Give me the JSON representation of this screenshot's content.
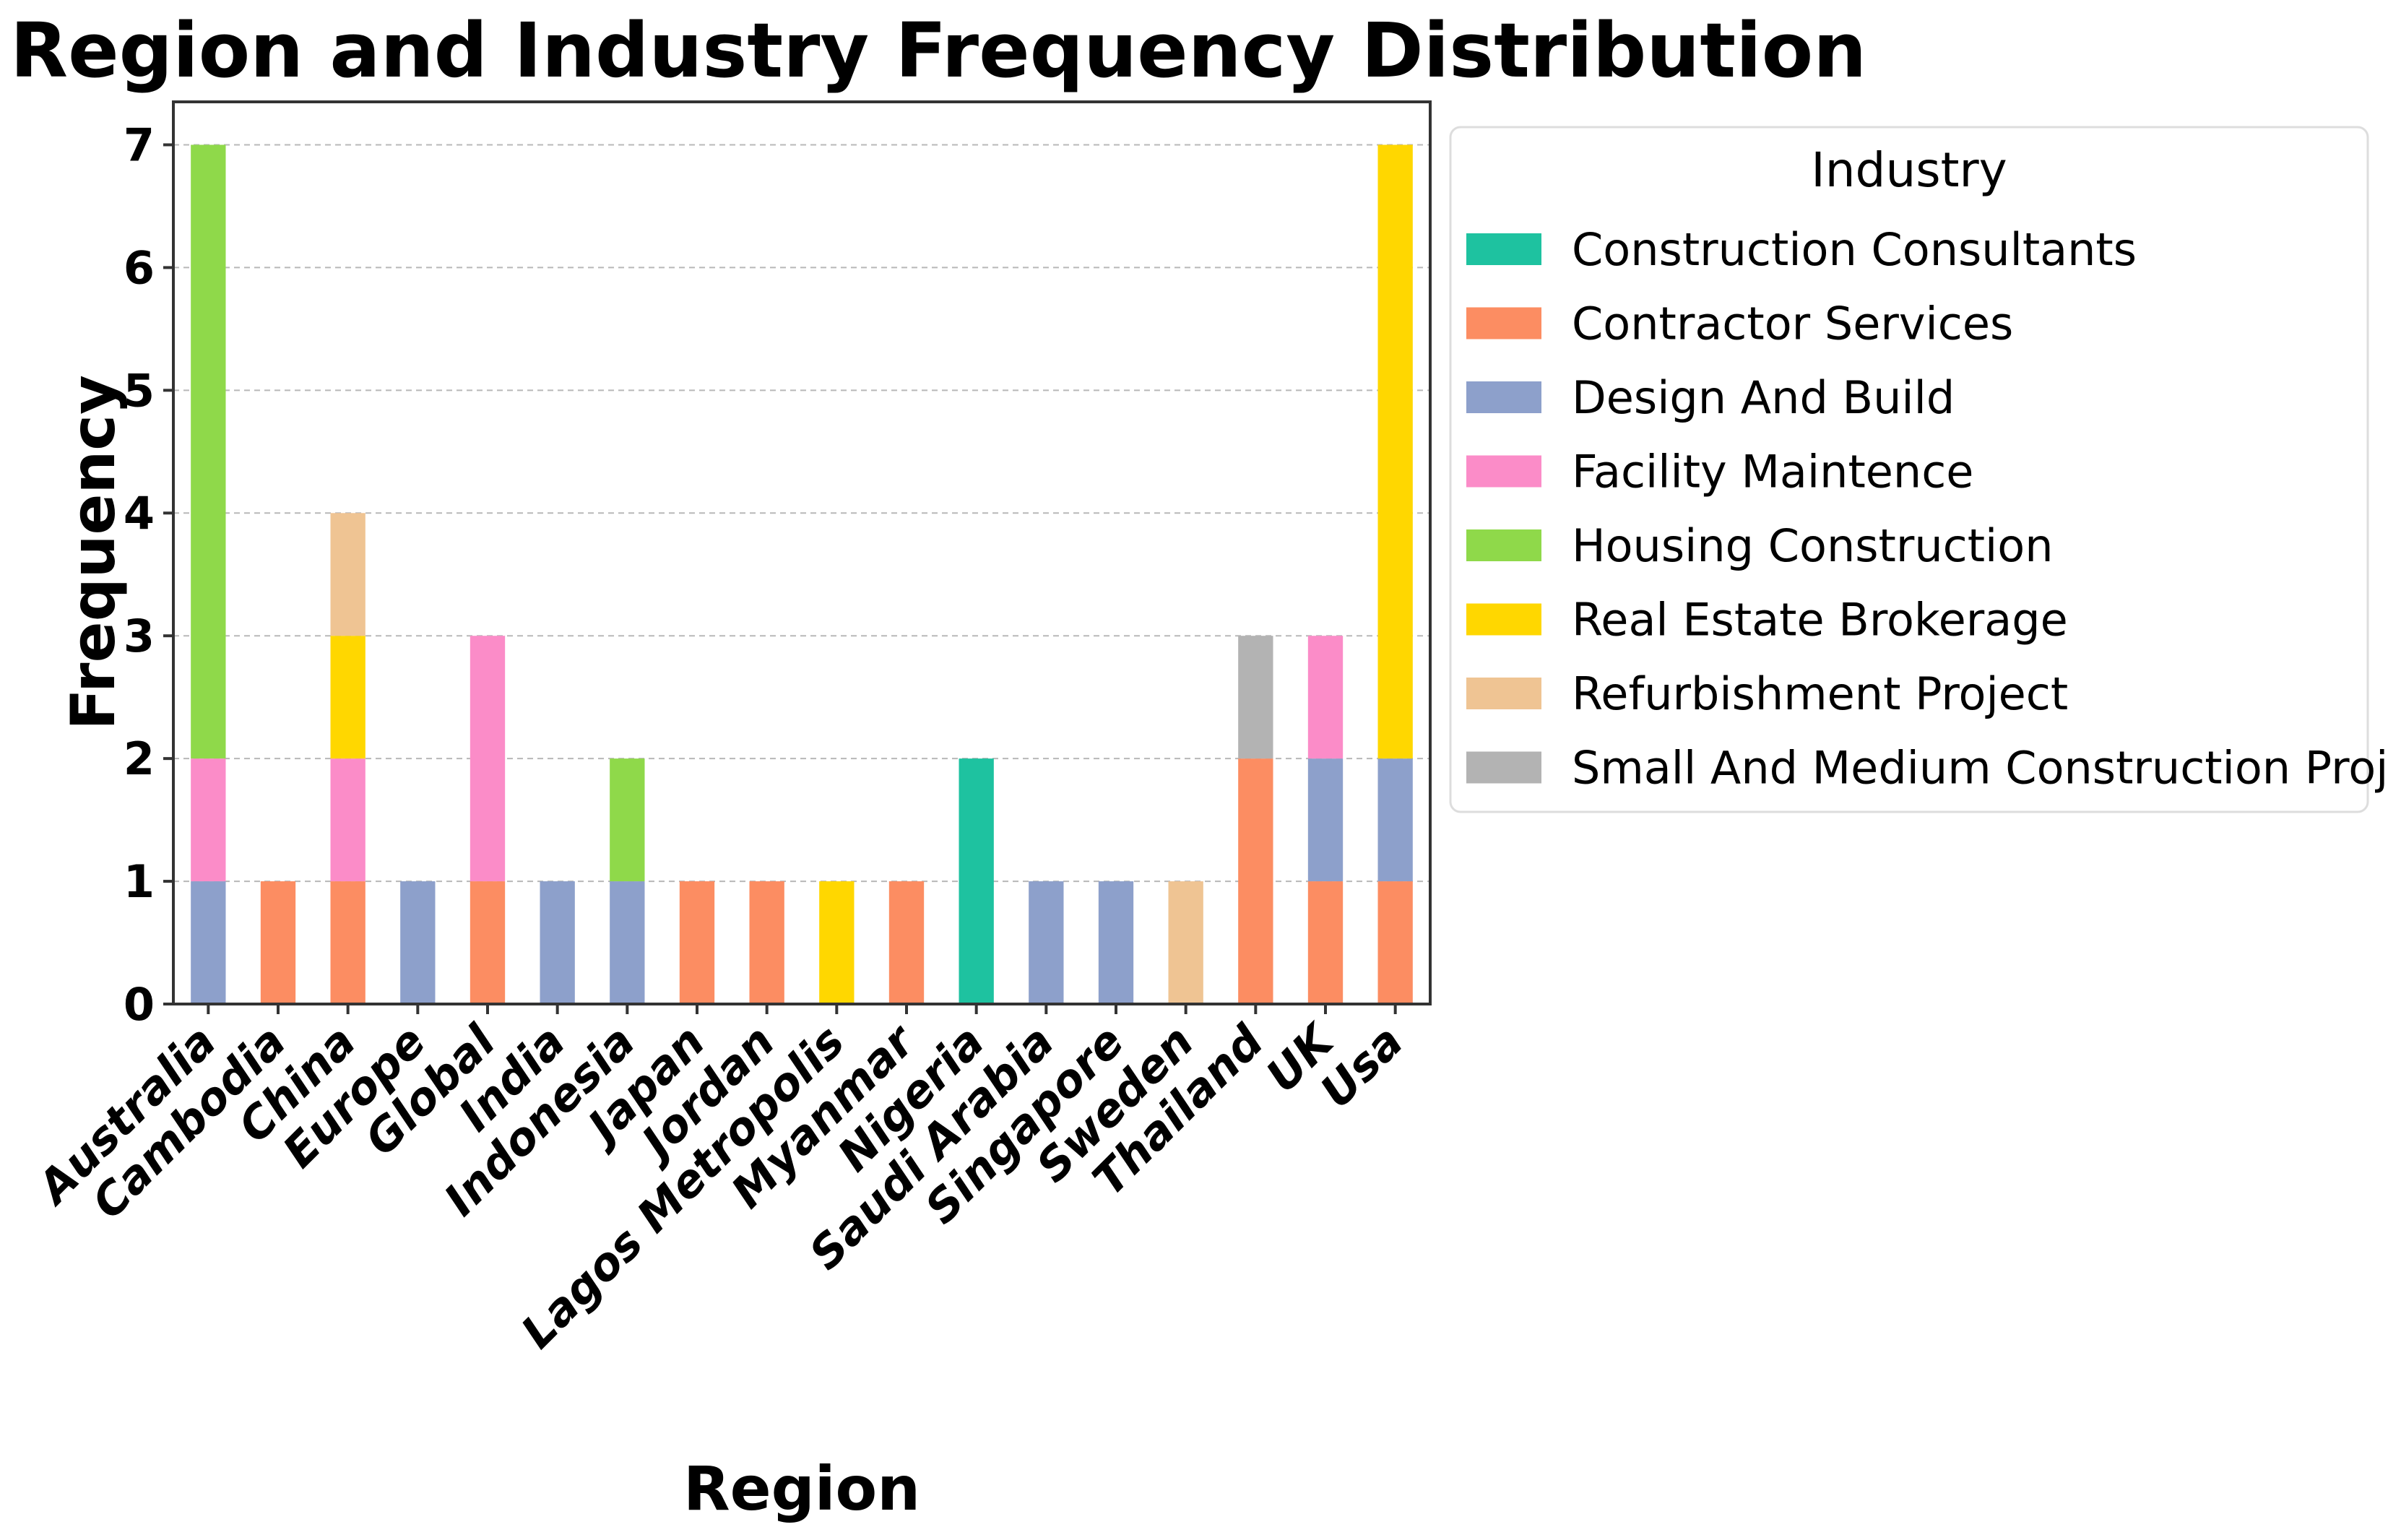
{
  "chart_data": {
    "type": "bar",
    "stacked": true,
    "title": "Region and Industry Frequency Distribution",
    "xlabel": "Region",
    "ylabel": "Frequency",
    "ylim": [
      0,
      7.35
    ],
    "yticks": [
      "0",
      "1",
      "2",
      "3",
      "4",
      "5",
      "6",
      "7"
    ],
    "grid": "horizontal dashed",
    "legend_position": "right",
    "legend_title": "Industry",
    "categories": [
      "Australia",
      "Cambodia",
      "China",
      "Europe",
      "Global",
      "India",
      "Indonesia",
      "Japan",
      "Jordan",
      "Lagos Metropolis",
      "Myanmar",
      "Nigeria",
      "Saudi Arabia",
      "Singapore",
      "Sweden",
      "Thailand",
      "UK",
      "Usa"
    ],
    "series": [
      {
        "name": "Construction Consultants",
        "color": "#1ec2a0",
        "values": [
          0,
          0,
          0,
          0,
          0,
          0,
          0,
          0,
          0,
          0,
          0,
          2,
          0,
          0,
          0,
          0,
          0,
          0
        ]
      },
      {
        "name": "Contractor Services",
        "color": "#fc8d62",
        "values": [
          0,
          1,
          1,
          0,
          1,
          0,
          0,
          1,
          1,
          0,
          1,
          0,
          0,
          0,
          0,
          2,
          1,
          1
        ]
      },
      {
        "name": "Design And Build",
        "color": "#8da0cb",
        "values": [
          1,
          0,
          0,
          1,
          0,
          1,
          1,
          0,
          0,
          0,
          0,
          0,
          1,
          1,
          0,
          0,
          1,
          1
        ]
      },
      {
        "name": "Facility Maintence",
        "color": "#fb8cc8",
        "values": [
          1,
          0,
          1,
          0,
          2,
          0,
          0,
          0,
          0,
          0,
          0,
          0,
          0,
          0,
          0,
          0,
          1,
          0
        ]
      },
      {
        "name": "Housing Construction",
        "color": "#8fd94a",
        "values": [
          5,
          0,
          0,
          0,
          0,
          0,
          1,
          0,
          0,
          0,
          0,
          0,
          0,
          0,
          0,
          0,
          0,
          0
        ]
      },
      {
        "name": "Real Estate Brokerage",
        "color": "#ffd700",
        "values": [
          0,
          0,
          1,
          0,
          0,
          0,
          0,
          0,
          0,
          1,
          0,
          0,
          0,
          0,
          0,
          0,
          0,
          5
        ]
      },
      {
        "name": "Refurbishment Project",
        "color": "#efc493",
        "values": [
          0,
          0,
          1,
          0,
          0,
          0,
          0,
          0,
          0,
          0,
          0,
          0,
          0,
          0,
          1,
          0,
          0,
          0
        ]
      },
      {
        "name": "Small And Medium Construction Projects",
        "color": "#b3b3b3",
        "values": [
          0,
          0,
          0,
          0,
          0,
          0,
          0,
          0,
          0,
          0,
          0,
          0,
          0,
          0,
          0,
          1,
          0,
          0
        ]
      }
    ]
  }
}
